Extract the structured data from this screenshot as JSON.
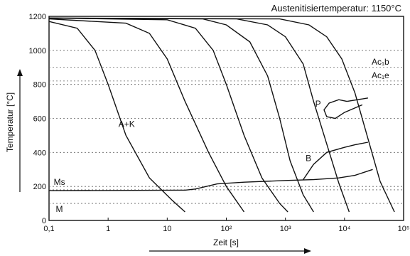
{
  "chart_data": {
    "type": "line",
    "title": "Austenitisiertemperatur: 1150°C",
    "xlabel": "Zeit [s]",
    "ylabel": "Temperatur [°C]",
    "xscale": "log",
    "xlim": [
      0.1,
      100000
    ],
    "ylim": [
      0,
      1200
    ],
    "x_ticks": [
      "0,1",
      "1",
      "10",
      "10²",
      "10³",
      "10⁴",
      "10⁵"
    ],
    "x_tick_values": [
      0.1,
      1,
      10,
      100,
      1000,
      10000,
      100000
    ],
    "y_ticks": [
      "0",
      "200",
      "400",
      "600",
      "800",
      "1000",
      "1200"
    ],
    "y_tick_values": [
      0,
      200,
      400,
      600,
      800,
      1000,
      1200
    ],
    "reference_lines": [
      {
        "label": "Ac₁b",
        "value": 900
      },
      {
        "label": "Ac₁e",
        "value": 820
      },
      {
        "label": "Ms",
        "value": 180
      },
      {
        "label": "",
        "value": 100
      }
    ],
    "region_labels": [
      {
        "label": "A+K",
        "x": 1.5,
        "y": 550
      },
      {
        "label": "P",
        "x": 3200,
        "y": 670
      },
      {
        "label": "B",
        "x": 2200,
        "y": 350
      },
      {
        "label": "Ms",
        "x": 0.12,
        "y": 210
      },
      {
        "label": "M",
        "x": 0.13,
        "y": 50
      }
    ],
    "series": [
      {
        "points": [
          [
            0.1,
            1170
          ],
          [
            0.3,
            1130
          ],
          [
            0.6,
            1000
          ],
          [
            1,
            800
          ],
          [
            2,
            500
          ],
          [
            5,
            250
          ],
          [
            12,
            120
          ],
          [
            20,
            50
          ]
        ]
      },
      {
        "points": [
          [
            0.1,
            1185
          ],
          [
            2,
            1160
          ],
          [
            5,
            1100
          ],
          [
            10,
            950
          ],
          [
            20,
            700
          ],
          [
            50,
            400
          ],
          [
            100,
            200
          ],
          [
            200,
            50
          ]
        ]
      },
      {
        "points": [
          [
            0.1,
            1190
          ],
          [
            10,
            1180
          ],
          [
            30,
            1130
          ],
          [
            60,
            1000
          ],
          [
            100,
            800
          ],
          [
            200,
            500
          ],
          [
            400,
            250
          ],
          [
            800,
            100
          ],
          [
            1100,
            50
          ]
        ]
      },
      {
        "points": [
          [
            0.1,
            1190
          ],
          [
            40,
            1185
          ],
          [
            100,
            1150
          ],
          [
            250,
            1050
          ],
          [
            500,
            850
          ],
          [
            800,
            600
          ],
          [
            1200,
            350
          ],
          [
            2000,
            150
          ],
          [
            3000,
            50
          ]
        ]
      },
      {
        "points": [
          [
            0.1,
            1190
          ],
          [
            150,
            1185
          ],
          [
            500,
            1150
          ],
          [
            1000,
            1080
          ],
          [
            2000,
            920
          ],
          [
            3000,
            700
          ],
          [
            5000,
            450
          ],
          [
            8000,
            220
          ],
          [
            12000,
            50
          ]
        ]
      },
      {
        "points": [
          [
            0.1,
            1190
          ],
          [
            800,
            1185
          ],
          [
            2500,
            1150
          ],
          [
            5000,
            1080
          ],
          [
            9000,
            950
          ],
          [
            15000,
            750
          ],
          [
            25000,
            480
          ],
          [
            40000,
            230
          ],
          [
            70000,
            50
          ]
        ]
      },
      {
        "points": [
          [
            0.1,
            175
          ],
          [
            20,
            178
          ],
          [
            30,
            185
          ],
          [
            70,
            215
          ],
          [
            200,
            225
          ],
          [
            1000,
            235
          ],
          [
            3000,
            240
          ],
          [
            8000,
            250
          ],
          [
            15000,
            265
          ],
          [
            30000,
            300
          ]
        ]
      },
      {
        "points": [
          [
            2000,
            240
          ],
          [
            3000,
            330
          ],
          [
            5000,
            400
          ],
          [
            10000,
            430
          ],
          [
            15000,
            445
          ],
          [
            25000,
            460
          ]
        ]
      },
      {
        "points": [
          [
            11000,
            700
          ],
          [
            8000,
            710
          ],
          [
            5500,
            690
          ],
          [
            4500,
            650
          ],
          [
            5000,
            610
          ],
          [
            7000,
            600
          ],
          [
            10000,
            635
          ],
          [
            20000,
            680
          ]
        ]
      },
      {
        "points": [
          [
            11000,
            700
          ],
          [
            25000,
            720
          ]
        ]
      }
    ],
    "thick_series_index": 6,
    "grid": "dotted horizontal lines at y tick values"
  }
}
